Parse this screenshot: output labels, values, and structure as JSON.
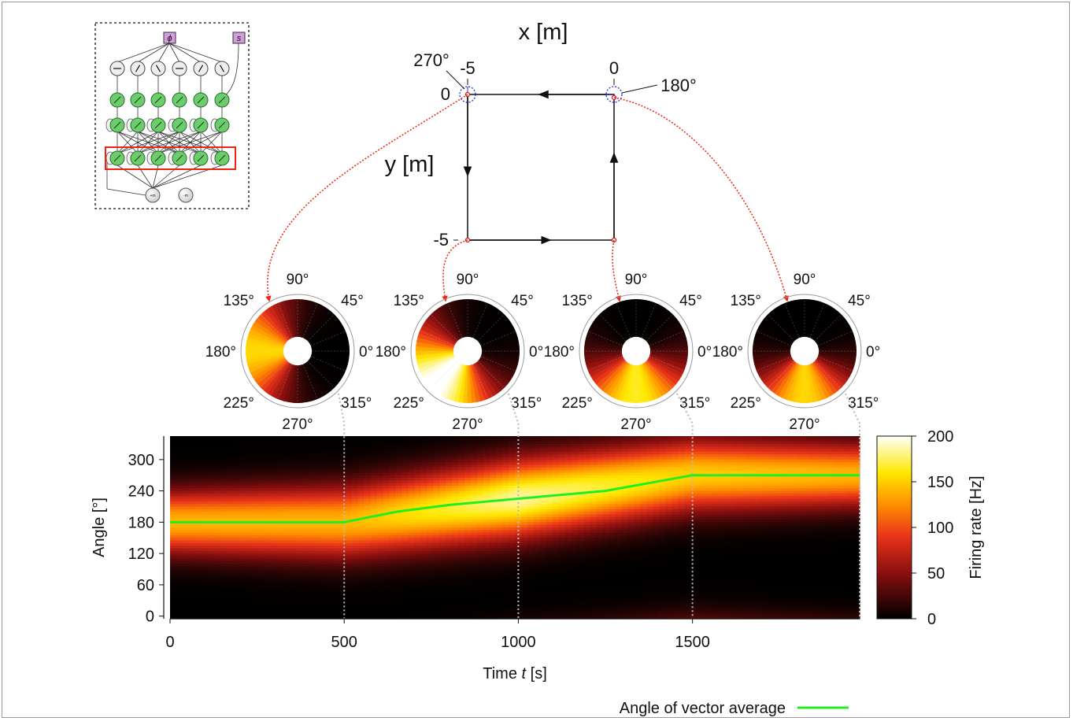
{
  "route": {
    "x_label": "x [m]",
    "y_label": "y [m]",
    "tick_x_left": "-5",
    "tick_x_right": "0",
    "tick_y_top": "0",
    "tick_y_bottom": "-5",
    "heading_topleft": "270°",
    "heading_topright": "180°"
  },
  "inset": {
    "input_phi": "ϕ",
    "input_s": "s",
    "node_plus": "+m",
    "node_minus": "-m"
  },
  "polar": {
    "labels": [
      "90°",
      "45°",
      "0°",
      "315°",
      "270°",
      "225°",
      "180°",
      "135°"
    ]
  },
  "legend": {
    "label": "Angle of vector average",
    "color": "#22ee22"
  },
  "colors": {
    "route_marker": "#dd1111",
    "heading_circle": "#2233dd",
    "guide": "#bbbbbb"
  },
  "chart_data": {
    "type": "heatmap",
    "xlabel_prefix": "Time ",
    "xlabel_var": "t",
    "xlabel_unit": " [s]",
    "ylabel": "Angle [°]",
    "xlim": [
      0,
      1980
    ],
    "ylim": [
      -5,
      345
    ],
    "x_ticks": [
      0,
      500,
      1000,
      1500
    ],
    "y_ticks": [
      0,
      60,
      120,
      180,
      240,
      300
    ],
    "colorbar": {
      "label": "Firing rate [Hz]",
      "range": [
        0,
        200
      ],
      "ticks": [
        0,
        50,
        100,
        150,
        200
      ]
    },
    "phase_markers": [
      500,
      1000,
      1500,
      1980
    ],
    "heat_ridge": {
      "t": [
        0,
        500,
        1000,
        1500,
        1980
      ],
      "center": [
        180,
        180,
        225,
        270,
        270
      ],
      "peak_rate": [
        140,
        140,
        185,
        150,
        140
      ],
      "width": [
        42,
        48,
        52,
        48,
        42
      ]
    },
    "series": [
      {
        "name": "Angle of vector average",
        "x": [
          0,
          500,
          650,
          800,
          1000,
          1250,
          1500,
          1980
        ],
        "y": [
          180,
          180,
          200,
          213,
          225,
          240,
          270,
          270
        ]
      }
    ]
  }
}
